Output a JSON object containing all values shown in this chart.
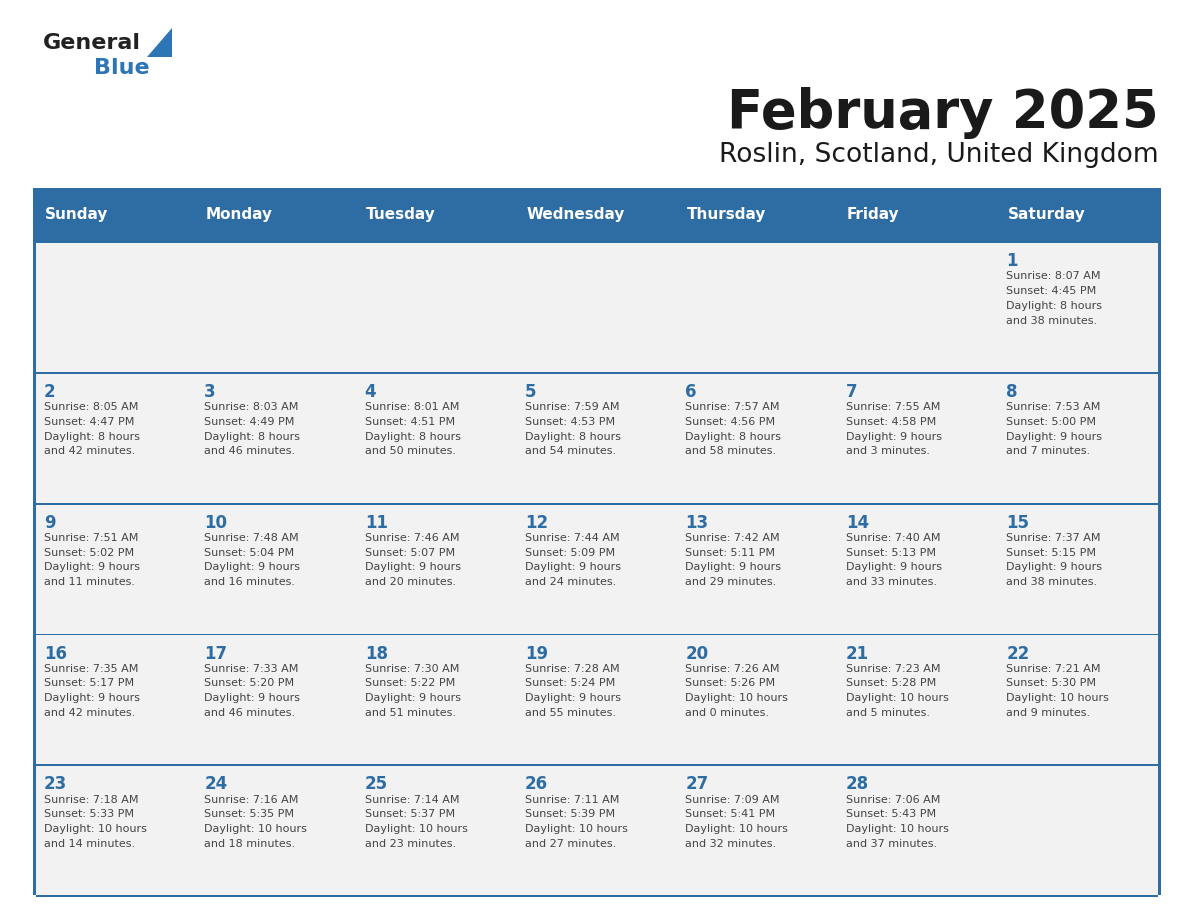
{
  "title": "February 2025",
  "subtitle": "Roslin, Scotland, United Kingdom",
  "days_of_week": [
    "Sunday",
    "Monday",
    "Tuesday",
    "Wednesday",
    "Thursday",
    "Friday",
    "Saturday"
  ],
  "header_bg": "#2E6DA4",
  "header_text": "#FFFFFF",
  "cell_bg": "#F2F2F2",
  "cell_border": "#2E6DA4",
  "day_number_color": "#2E6DA4",
  "cell_text_color": "#444444",
  "logo_general_color": "#222222",
  "logo_blue_color": "#2E75B6",
  "title_color": "#1a1a1a",
  "subtitle_color": "#1a1a1a",
  "calendar_data": [
    [
      null,
      null,
      null,
      null,
      null,
      null,
      {
        "day": "1",
        "sunrise": "8:07 AM",
        "sunset": "4:45 PM",
        "daylight": "8 hours\nand 38 minutes."
      }
    ],
    [
      {
        "day": "2",
        "sunrise": "8:05 AM",
        "sunset": "4:47 PM",
        "daylight": "8 hours\nand 42 minutes."
      },
      {
        "day": "3",
        "sunrise": "8:03 AM",
        "sunset": "4:49 PM",
        "daylight": "8 hours\nand 46 minutes."
      },
      {
        "day": "4",
        "sunrise": "8:01 AM",
        "sunset": "4:51 PM",
        "daylight": "8 hours\nand 50 minutes."
      },
      {
        "day": "5",
        "sunrise": "7:59 AM",
        "sunset": "4:53 PM",
        "daylight": "8 hours\nand 54 minutes."
      },
      {
        "day": "6",
        "sunrise": "7:57 AM",
        "sunset": "4:56 PM",
        "daylight": "8 hours\nand 58 minutes."
      },
      {
        "day": "7",
        "sunrise": "7:55 AM",
        "sunset": "4:58 PM",
        "daylight": "9 hours\nand 3 minutes."
      },
      {
        "day": "8",
        "sunrise": "7:53 AM",
        "sunset": "5:00 PM",
        "daylight": "9 hours\nand 7 minutes."
      }
    ],
    [
      {
        "day": "9",
        "sunrise": "7:51 AM",
        "sunset": "5:02 PM",
        "daylight": "9 hours\nand 11 minutes."
      },
      {
        "day": "10",
        "sunrise": "7:48 AM",
        "sunset": "5:04 PM",
        "daylight": "9 hours\nand 16 minutes."
      },
      {
        "day": "11",
        "sunrise": "7:46 AM",
        "sunset": "5:07 PM",
        "daylight": "9 hours\nand 20 minutes."
      },
      {
        "day": "12",
        "sunrise": "7:44 AM",
        "sunset": "5:09 PM",
        "daylight": "9 hours\nand 24 minutes."
      },
      {
        "day": "13",
        "sunrise": "7:42 AM",
        "sunset": "5:11 PM",
        "daylight": "9 hours\nand 29 minutes."
      },
      {
        "day": "14",
        "sunrise": "7:40 AM",
        "sunset": "5:13 PM",
        "daylight": "9 hours\nand 33 minutes."
      },
      {
        "day": "15",
        "sunrise": "7:37 AM",
        "sunset": "5:15 PM",
        "daylight": "9 hours\nand 38 minutes."
      }
    ],
    [
      {
        "day": "16",
        "sunrise": "7:35 AM",
        "sunset": "5:17 PM",
        "daylight": "9 hours\nand 42 minutes."
      },
      {
        "day": "17",
        "sunrise": "7:33 AM",
        "sunset": "5:20 PM",
        "daylight": "9 hours\nand 46 minutes."
      },
      {
        "day": "18",
        "sunrise": "7:30 AM",
        "sunset": "5:22 PM",
        "daylight": "9 hours\nand 51 minutes."
      },
      {
        "day": "19",
        "sunrise": "7:28 AM",
        "sunset": "5:24 PM",
        "daylight": "9 hours\nand 55 minutes."
      },
      {
        "day": "20",
        "sunrise": "7:26 AM",
        "sunset": "5:26 PM",
        "daylight": "10 hours\nand 0 minutes."
      },
      {
        "day": "21",
        "sunrise": "7:23 AM",
        "sunset": "5:28 PM",
        "daylight": "10 hours\nand 5 minutes."
      },
      {
        "day": "22",
        "sunrise": "7:21 AM",
        "sunset": "5:30 PM",
        "daylight": "10 hours\nand 9 minutes."
      }
    ],
    [
      {
        "day": "23",
        "sunrise": "7:18 AM",
        "sunset": "5:33 PM",
        "daylight": "10 hours\nand 14 minutes."
      },
      {
        "day": "24",
        "sunrise": "7:16 AM",
        "sunset": "5:35 PM",
        "daylight": "10 hours\nand 18 minutes."
      },
      {
        "day": "25",
        "sunrise": "7:14 AM",
        "sunset": "5:37 PM",
        "daylight": "10 hours\nand 23 minutes."
      },
      {
        "day": "26",
        "sunrise": "7:11 AM",
        "sunset": "5:39 PM",
        "daylight": "10 hours\nand 27 minutes."
      },
      {
        "day": "27",
        "sunrise": "7:09 AM",
        "sunset": "5:41 PM",
        "daylight": "10 hours\nand 32 minutes."
      },
      {
        "day": "28",
        "sunrise": "7:06 AM",
        "sunset": "5:43 PM",
        "daylight": "10 hours\nand 37 minutes."
      },
      null
    ]
  ]
}
